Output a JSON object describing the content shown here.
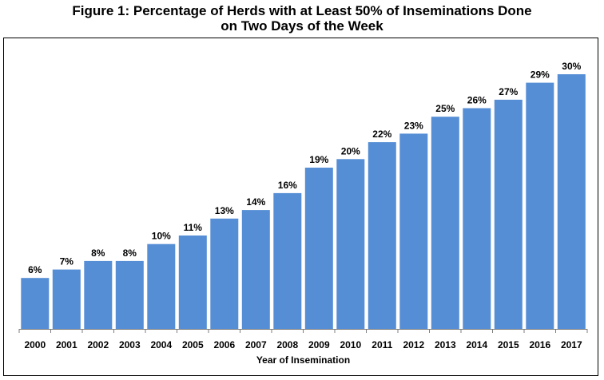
{
  "chart_data": {
    "type": "bar",
    "title_line1": "Figure 1: Percentage of Herds with at Least 50% of Inseminations Done",
    "title_line2": "on Two Days of the Week",
    "xlabel": "Year of Insemination",
    "ylabel": "",
    "categories": [
      "2000",
      "2001",
      "2002",
      "2003",
      "2004",
      "2005",
      "2006",
      "2007",
      "2008",
      "2009",
      "2010",
      "2011",
      "2012",
      "2013",
      "2014",
      "2015",
      "2016",
      "2017"
    ],
    "values": [
      6,
      7,
      8,
      8,
      10,
      11,
      13,
      14,
      16,
      19,
      20,
      22,
      23,
      25,
      26,
      27,
      29,
      30
    ],
    "data_labels": [
      "6%",
      "7%",
      "8%",
      "8%",
      "10%",
      "11%",
      "13%",
      "14%",
      "16%",
      "19%",
      "20%",
      "22%",
      "23%",
      "25%",
      "26%",
      "27%",
      "29%",
      "30%"
    ],
    "ylim": [
      0,
      30
    ],
    "grid": false,
    "legend": "none",
    "bar_color": "#558ED5"
  }
}
